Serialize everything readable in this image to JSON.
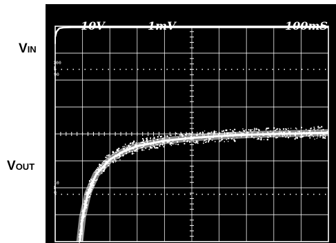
{
  "labels": {
    "vin_main": "V",
    "vin_sub": "IN",
    "vout_main": "V",
    "vout_sub": "OUT"
  },
  "scales": {
    "volts_per_div_top": "10V",
    "volts_per_div_bottom": "1mV",
    "time_per_div": "100mS"
  },
  "percent_markers": {
    "top_100": "100",
    "top_90": "90",
    "bottom_10": "10",
    "bottom_0": "0"
  },
  "colors": {
    "screen": "#000000",
    "trace": "#ffffff",
    "grid": "#ffffff"
  },
  "chart_data": {
    "type": "line",
    "title": "",
    "xlabel": "",
    "ylabel": "",
    "grid": true,
    "x_divisions": 10,
    "y_divisions": 8,
    "xlim": [
      0,
      10
    ],
    "ylim": [
      0,
      8
    ],
    "series": [
      {
        "name": "VIN",
        "x": [
          0.0,
          0.05,
          0.15,
          0.3,
          0.6,
          1.0,
          2.0,
          4.0,
          6.0,
          8.0,
          10.0
        ],
        "y": [
          7.6,
          7.8,
          7.92,
          7.95,
          7.96,
          7.96,
          7.96,
          7.96,
          7.96,
          7.96,
          7.96
        ]
      },
      {
        "name": "VOUT",
        "x": [
          0.9,
          1.0,
          1.2,
          1.5,
          2.0,
          2.5,
          3.0,
          4.0,
          5.0,
          6.0,
          7.0,
          8.0,
          9.0,
          10.0
        ],
        "y": [
          0.0,
          0.9,
          1.8,
          2.5,
          3.05,
          3.35,
          3.55,
          3.75,
          3.85,
          3.92,
          3.97,
          4.0,
          4.02,
          4.05
        ]
      }
    ]
  }
}
